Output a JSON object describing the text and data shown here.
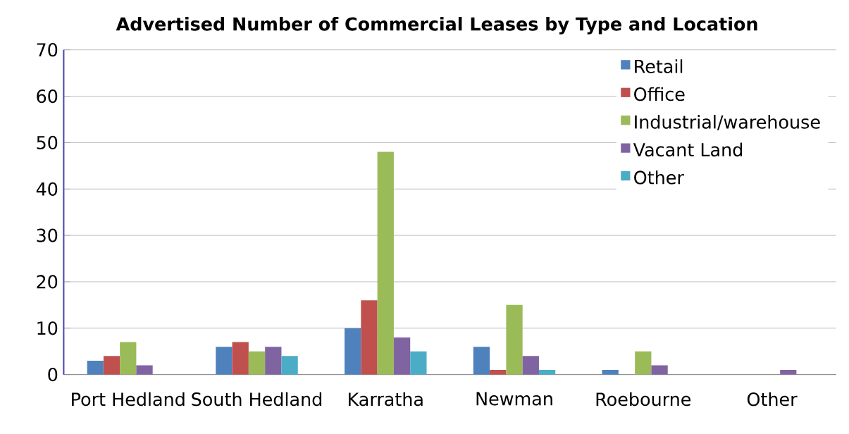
{
  "chart_data": {
    "type": "bar",
    "title": "Advertised Number of Commercial Leases by Type and Location",
    "categories": [
      "Port Hedland",
      "South Hedland",
      "Karratha",
      "Newman",
      "Roebourne",
      "Other"
    ],
    "series": [
      {
        "name": "Retail",
        "color": "#4f81bd",
        "values": [
          3,
          6,
          10,
          6,
          1,
          0
        ]
      },
      {
        "name": "Office",
        "color": "#c0504d",
        "values": [
          4,
          7,
          16,
          1,
          0,
          0
        ]
      },
      {
        "name": "Industrial/warehouse",
        "color": "#9bbb59",
        "values": [
          7,
          5,
          48,
          15,
          5,
          0
        ]
      },
      {
        "name": "Vacant Land",
        "color": "#8064a2",
        "values": [
          2,
          6,
          8,
          4,
          2,
          1
        ]
      },
      {
        "name": "Other",
        "color": "#4bacc6",
        "values": [
          0,
          4,
          5,
          1,
          0,
          0
        ]
      }
    ],
    "ylim": [
      0,
      70
    ],
    "yticks": [
      0,
      10,
      20,
      30,
      40,
      50,
      60,
      70
    ],
    "grid": "y",
    "legend": "top right"
  }
}
